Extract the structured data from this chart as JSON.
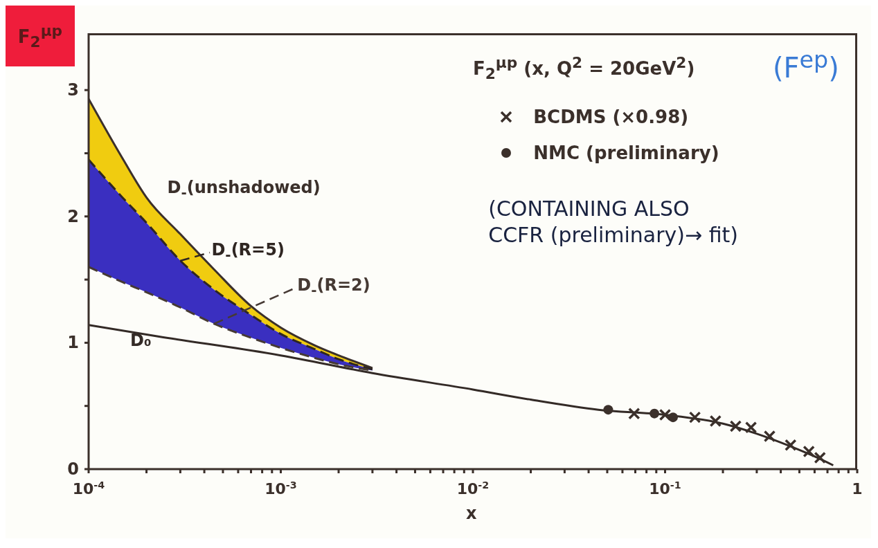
{
  "chart_data": {
    "type": "line",
    "title": "F$_{2}$$^{μp}$ (x, Q$^{2}$ = 20GeV$^{2}$)",
    "xlabel": "x",
    "ylabel": "F$_{2}$$^{μp}$",
    "log": "x",
    "xlim": [
      0.0001,
      1
    ],
    "ylim": [
      0,
      3.45
    ],
    "xticks": [
      {
        "value": 0.0001,
        "label": "10$^{-4}$"
      },
      {
        "value": 0.0002,
        "label": null
      },
      {
        "value": 0.0003,
        "label": null
      },
      {
        "value": 0.0004,
        "label": null
      },
      {
        "value": 0.0005,
        "label": null
      },
      {
        "value": 0.0006,
        "label": null
      },
      {
        "value": 0.0007,
        "label": null
      },
      {
        "value": 0.0008,
        "label": null
      },
      {
        "value": 0.0009,
        "label": null
      },
      {
        "value": 0.001,
        "label": "10$^{-3}$"
      },
      {
        "value": 0.002,
        "label": null
      },
      {
        "value": 0.003,
        "label": null
      },
      {
        "value": 0.004,
        "label": null
      },
      {
        "value": 0.005,
        "label": null
      },
      {
        "value": 0.006,
        "label": null
      },
      {
        "value": 0.007,
        "label": null
      },
      {
        "value": 0.008,
        "label": null
      },
      {
        "value": 0.009,
        "label": null
      },
      {
        "value": 0.01,
        "label": "10$^{-2}$"
      },
      {
        "value": 0.02,
        "label": null
      },
      {
        "value": 0.03,
        "label": null
      },
      {
        "value": 0.04,
        "label": null
      },
      {
        "value": 0.05,
        "label": null
      },
      {
        "value": 0.06,
        "label": null
      },
      {
        "value": 0.07,
        "label": null
      },
      {
        "value": 0.08,
        "label": null
      },
      {
        "value": 0.09,
        "label": null
      },
      {
        "value": 0.1,
        "label": "10$^{-1}$"
      },
      {
        "value": 0.2,
        "label": null
      },
      {
        "value": 0.3,
        "label": null
      },
      {
        "value": 0.4,
        "label": null
      },
      {
        "value": 0.5,
        "label": null
      },
      {
        "value": 0.6,
        "label": null
      },
      {
        "value": 0.7,
        "label": null
      },
      {
        "value": 0.8,
        "label": null
      },
      {
        "value": 0.9,
        "label": null
      },
      1
    ],
    "yticks": [
      0,
      {
        "value": 0.5,
        "label": null
      },
      1,
      {
        "value": 1.5,
        "label": null
      },
      2,
      {
        "value": 2.5,
        "label": null
      },
      3
    ],
    "legend": "top right",
    "series": [
      {
        "type": "line",
        "name": "D$_{-}$(unshadowed)",
        "color": "#3b302b",
        "line_style": "solid",
        "marker": "none",
        "x": [
          0.0001,
          0.00015,
          0.0002,
          0.0003,
          0.00045,
          0.0007,
          0.001,
          0.0015,
          0.002,
          0.003
        ],
        "values": [
          2.93,
          2.46,
          2.15,
          1.86,
          1.58,
          1.29,
          1.12,
          0.98,
          0.9,
          0.8
        ],
        "lower": [
          2.45,
          2.15,
          1.95,
          1.65,
          1.42,
          1.22,
          1.07,
          0.95,
          0.87,
          0.79
        ],
        "upper": [
          2.93,
          2.46,
          2.15,
          1.86,
          1.58,
          1.29,
          1.12,
          0.98,
          0.9,
          0.8
        ]
      },
      {
        "type": "line",
        "name": "D$_{-}$(R=5)",
        "color": "#2f2622",
        "line_style": "dashed",
        "marker": "none",
        "x": [
          0.0001,
          0.00015,
          0.0002,
          0.0003,
          0.00045,
          0.0007,
          0.001,
          0.0015,
          0.002,
          0.003
        ],
        "values": [
          2.45,
          2.15,
          1.95,
          1.65,
          1.42,
          1.22,
          1.07,
          0.95,
          0.87,
          0.79
        ],
        "lower": [
          1.6,
          1.48,
          1.4,
          1.28,
          1.15,
          1.04,
          0.96,
          0.88,
          0.83,
          0.78
        ],
        "upper": [
          2.45,
          2.15,
          1.95,
          1.65,
          1.42,
          1.22,
          1.07,
          0.95,
          0.87,
          0.79
        ]
      },
      {
        "type": "line",
        "name": "D$_{-}$(R=2)",
        "color": "#463a34",
        "line_style": "dashed",
        "marker": "none",
        "x": [
          0.0001,
          0.00015,
          0.0002,
          0.0003,
          0.00045,
          0.0007,
          0.001,
          0.0015,
          0.002,
          0.003
        ],
        "values": [
          1.6,
          1.48,
          1.4,
          1.28,
          1.15,
          1.04,
          0.96,
          0.88,
          0.83,
          0.78
        ]
      },
      {
        "name": "D₀",
        "color": "#332a26",
        "line_style": "solid",
        "marker": "none",
        "x": [
          0.0001,
          0.00023,
          0.001,
          0.003,
          0.01,
          0.02,
          0.045,
          0.1,
          0.2,
          0.3,
          0.45,
          0.6,
          0.75
        ],
        "values": [
          1.14,
          1.05,
          0.9,
          0.76,
          0.63,
          0.55,
          0.47,
          0.43,
          0.36,
          0.28,
          0.18,
          0.1,
          0.03
        ]
      },
      {
        "type": "scatter",
        "name": "BCDMS (×0.98)",
        "color": "#3b302b",
        "marker": "cross",
        "x": [
          0.069,
          0.1,
          0.143,
          0.183,
          0.233,
          0.28,
          0.35,
          0.45,
          0.56,
          0.64
        ],
        "values": [
          0.44,
          0.43,
          0.41,
          0.38,
          0.34,
          0.33,
          0.26,
          0.19,
          0.14,
          0.09
        ]
      },
      {
        "type": "scatter",
        "name": "NMC (preliminary)",
        "color": "#3b302b",
        "marker": "circle",
        "x": [
          0.0506,
          0.088,
          0.11
        ],
        "values": [
          0.47,
          0.44,
          0.41
        ]
      }
    ],
    "annotations": [
      "(F$^{ep}$)",
      "(CONTAINING ALSO\nCCFR (preliminary)→ fit)"
    ]
  }
}
